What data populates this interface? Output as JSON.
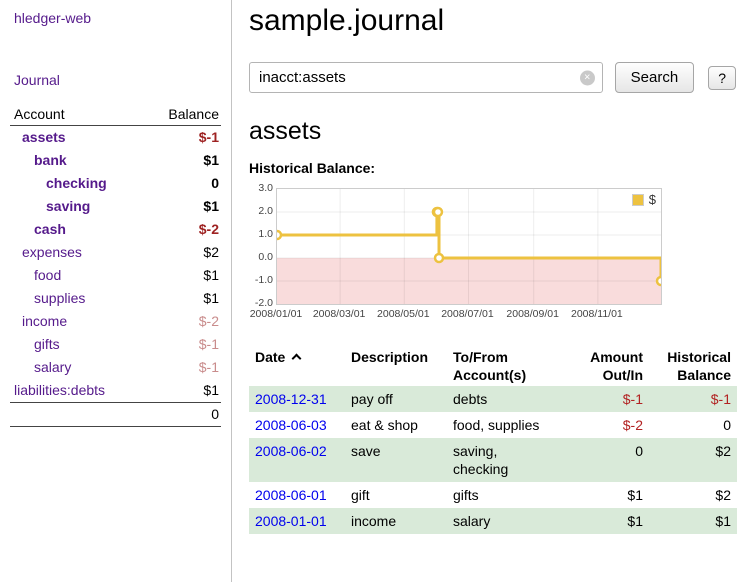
{
  "theme": {
    "link_purple": "#551a8b",
    "date_link_blue": "#0000ee",
    "negative_red": "#b22222",
    "negative_dark_red": "#9e2222",
    "negative_light_red": "#c98c8c",
    "row_green": "#d9ead9",
    "series_yellow": "#edc240",
    "negative_region_pink": "#f9dcdc"
  },
  "app": {
    "title": "hledger-web"
  },
  "sidebar": {
    "journal_link": "Journal",
    "table_headers": {
      "account": "Account",
      "balance": "Balance"
    },
    "accounts": [
      {
        "name": "assets",
        "balance": "$-1",
        "indent": 0,
        "bold": true,
        "name_style": "negative",
        "balance_style": "negative"
      },
      {
        "name": "bank",
        "balance": "$1",
        "indent": 1,
        "bold": true,
        "name_style": "link",
        "balance_style": "normal"
      },
      {
        "name": "checking",
        "balance": "0",
        "indent": 2,
        "bold": true,
        "name_style": "link",
        "balance_style": "normal"
      },
      {
        "name": "saving",
        "balance": "$1",
        "indent": 2,
        "bold": true,
        "name_style": "link",
        "balance_style": "normal"
      },
      {
        "name": "cash",
        "balance": "$-2",
        "indent": 1,
        "bold": true,
        "name_style": "negative",
        "balance_style": "negative"
      },
      {
        "name": "expenses",
        "balance": "$2",
        "indent": 0,
        "bold": false,
        "name_style": "link",
        "balance_style": "normal"
      },
      {
        "name": "food",
        "balance": "$1",
        "indent": 1,
        "bold": false,
        "name_style": "link",
        "balance_style": "normal"
      },
      {
        "name": "supplies",
        "balance": "$1",
        "indent": 1,
        "bold": false,
        "name_style": "link",
        "balance_style": "normal"
      },
      {
        "name": "income",
        "balance": "$-2",
        "indent": 0,
        "bold": false,
        "name_style": "negative-muted",
        "balance_style": "negative-light"
      },
      {
        "name": "gifts",
        "balance": "$-1",
        "indent": 1,
        "bold": false,
        "name_style": "link",
        "balance_style": "negative-light"
      },
      {
        "name": "salary",
        "balance": "$-1",
        "indent": 1,
        "bold": false,
        "name_style": "link",
        "balance_style": "negative-light"
      },
      {
        "name": "liabilities:debts",
        "balance": "$1",
        "indent": 0,
        "bold": false,
        "name_style": "link",
        "balance_style": "normal",
        "flush": true
      }
    ],
    "total": "0"
  },
  "main": {
    "title": "sample.journal",
    "search": {
      "value": "inacct:assets",
      "clear_icon": "×",
      "search_button": "Search",
      "help_button": "?"
    },
    "account_heading": "assets",
    "chart_title": "Historical Balance:"
  },
  "chart_data": {
    "type": "line",
    "step": true,
    "title": "Historical Balance:",
    "series": [
      {
        "name": "$",
        "color": "#edc240",
        "points": [
          [
            "2008/01/01",
            1
          ],
          [
            "2008/06/01",
            2
          ],
          [
            "2008/06/02",
            2
          ],
          [
            "2008/06/03",
            0
          ],
          [
            "2008/12/31",
            -1
          ]
        ]
      }
    ],
    "ylim": [
      -2,
      3
    ],
    "y_ticks": [
      3.0,
      2.0,
      1.0,
      0.0,
      -1.0,
      -2.0
    ],
    "y_tick_labels": [
      "3.0",
      "2.0",
      "1.0",
      "0.0",
      "-1.0",
      "-2.0"
    ],
    "xlim": [
      "2008/01/01",
      "2008/12/31"
    ],
    "x_ticks": [
      "2008/01/01",
      "2008/03/01",
      "2008/05/01",
      "2008/07/01",
      "2008/09/01",
      "2008/11/01"
    ],
    "grid": true,
    "legend": {
      "label": "$",
      "position": "top-right"
    },
    "negative_region": {
      "from": 0,
      "to": -2,
      "color": "#f9dcdc"
    }
  },
  "register": {
    "headers": {
      "date": "Date",
      "sort_icon": "chevron-up",
      "description": "Description",
      "accounts": "To/From\nAccount(s)",
      "amount": "Amount\nOut/In",
      "balance": "Historical\nBalance"
    },
    "rows": [
      {
        "date": "2008-12-31",
        "description": "pay off",
        "accounts": "debts",
        "amount": "$-1",
        "amount_negative": true,
        "balance": "$-1",
        "balance_negative": true
      },
      {
        "date": "2008-06-03",
        "description": "eat & shop",
        "accounts": "food, supplies",
        "amount": "$-2",
        "amount_negative": true,
        "balance": "0",
        "balance_negative": false
      },
      {
        "date": "2008-06-02",
        "description": "save",
        "accounts": "saving,\nchecking",
        "amount": "0",
        "amount_negative": false,
        "balance": "$2",
        "balance_negative": false
      },
      {
        "date": "2008-06-01",
        "description": "gift",
        "accounts": "gifts",
        "amount": "$1",
        "amount_negative": false,
        "balance": "$2",
        "balance_negative": false
      },
      {
        "date": "2008-01-01",
        "description": "income",
        "accounts": "salary",
        "amount": "$1",
        "amount_negative": false,
        "balance": "$1",
        "balance_negative": false
      }
    ]
  }
}
